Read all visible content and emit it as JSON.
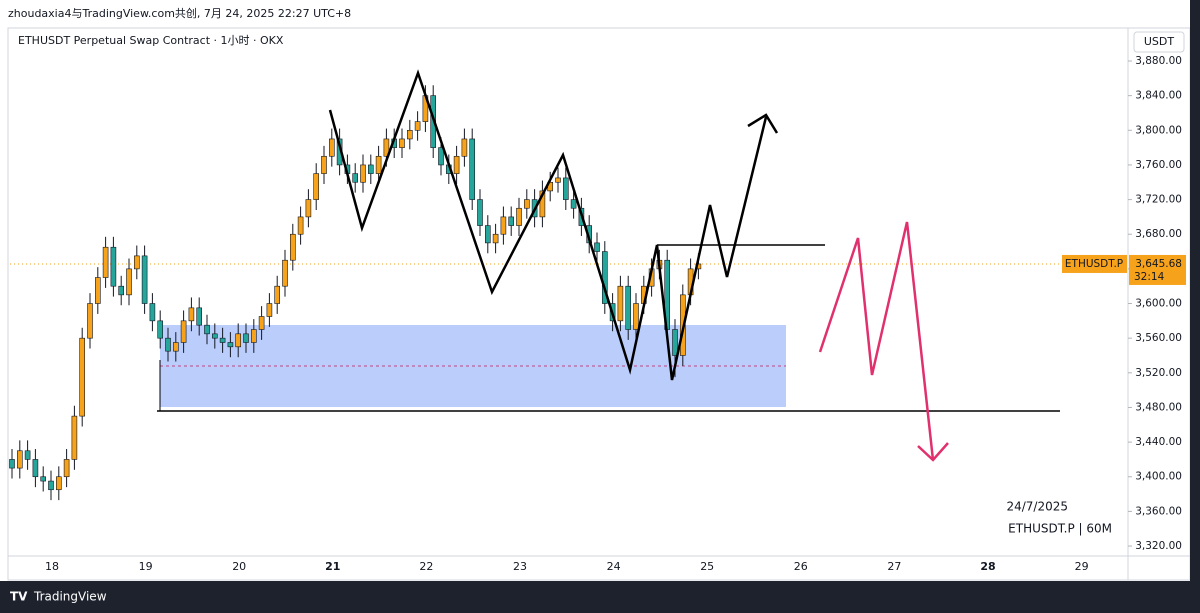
{
  "header": {
    "title": "zhoudaxia4与TradingView.com共创, 7月 24, 2025 22:27 UTC+8"
  },
  "footer": {
    "brand": "TradingView"
  },
  "chart_data": {
    "type": "candlestick",
    "title": "ETHUSDT Perpetual Swap Contract · 1小时 · OKX",
    "currency": "USDT",
    "annotation_date": "24/7/2025",
    "annotation_symbol": "ETHUSDT.P | 60M",
    "price_tag_name": "ETHUSDT.P",
    "countdown": "32:14",
    "last_price": {
      "value": 3645.68,
      "label": "3,645.68"
    },
    "up_color": "#f7a21b",
    "down_color": "#26a69a",
    "xticks": [
      18,
      19,
      20,
      21,
      22,
      23,
      24,
      25,
      26,
      27,
      28,
      29
    ],
    "ylim": [
      3308.5,
      3918.1
    ],
    "yticks": [
      {
        "value": 3320,
        "label": "3,320.00"
      },
      {
        "value": 3360,
        "label": "3,360.00"
      },
      {
        "value": 3400,
        "label": "3,400.00"
      },
      {
        "value": 3440,
        "label": "3,440.00"
      },
      {
        "value": 3480,
        "label": "3,480.00"
      },
      {
        "value": 3520,
        "label": "3,520.00"
      },
      {
        "value": 3560,
        "label": "3,560.00"
      },
      {
        "value": 3600,
        "label": "3,600.00"
      },
      {
        "value": 3640,
        "label": "3,640.00"
      },
      {
        "value": 3680,
        "label": "3,680.00"
      },
      {
        "value": 3720,
        "label": "3,720.00"
      },
      {
        "value": 3760,
        "label": "3,760.00"
      },
      {
        "value": 3800,
        "label": "3,800.00"
      },
      {
        "value": 3840,
        "label": "3,840.00"
      },
      {
        "value": 3880,
        "label": "3,880.00"
      }
    ],
    "open": [
      3420,
      3410,
      3430,
      3420,
      3400,
      3395,
      3385,
      3400,
      3420,
      3470,
      3560,
      3600,
      3630,
      3665,
      3620,
      3610,
      3640,
      3655,
      3600,
      3580,
      3560,
      3545,
      3555,
      3580,
      3595,
      3575,
      3565,
      3560,
      3555,
      3550,
      3565,
      3555,
      3570,
      3585,
      3600,
      3620,
      3650,
      3680,
      3700,
      3720,
      3750,
      3770,
      3790,
      3760,
      3750,
      3740,
      3760,
      3750,
      3770,
      3790,
      3780,
      3790,
      3800,
      3810,
      3840,
      3780,
      3760,
      3750,
      3770,
      3790,
      3720,
      3690,
      3670,
      3680,
      3700,
      3690,
      3710,
      3720,
      3700,
      3730,
      3740,
      3745,
      3720,
      3710,
      3690,
      3670,
      3660,
      3600,
      3580,
      3620,
      3570,
      3600,
      3620,
      3640,
      3650,
      3570,
      3540,
      3610,
      3640
    ],
    "high": [
      3432,
      3442,
      3442,
      3432,
      3412,
      3407,
      3412,
      3432,
      3482,
      3572,
      3612,
      3642,
      3677,
      3677,
      3632,
      3652,
      3667,
      3667,
      3612,
      3592,
      3572,
      3567,
      3592,
      3607,
      3607,
      3587,
      3577,
      3572,
      3567,
      3577,
      3577,
      3582,
      3597,
      3612,
      3632,
      3662,
      3692,
      3712,
      3732,
      3762,
      3782,
      3802,
      3802,
      3772,
      3762,
      3772,
      3772,
      3782,
      3802,
      3802,
      3802,
      3812,
      3822,
      3852,
      3852,
      3792,
      3772,
      3782,
      3802,
      3802,
      3732,
      3702,
      3692,
      3712,
      3712,
      3722,
      3732,
      3732,
      3742,
      3752,
      3757,
      3757,
      3732,
      3722,
      3702,
      3682,
      3672,
      3612,
      3632,
      3632,
      3612,
      3632,
      3652,
      3662,
      3662,
      3582,
      3622,
      3652,
      3658
    ],
    "low": [
      3398,
      3398,
      3408,
      3388,
      3383,
      3373,
      3373,
      3388,
      3408,
      3458,
      3548,
      3588,
      3618,
      3608,
      3598,
      3598,
      3628,
      3588,
      3568,
      3548,
      3533,
      3533,
      3543,
      3568,
      3563,
      3553,
      3548,
      3543,
      3538,
      3538,
      3543,
      3543,
      3558,
      3573,
      3588,
      3608,
      3638,
      3668,
      3688,
      3708,
      3738,
      3758,
      3748,
      3738,
      3728,
      3728,
      3738,
      3738,
      3758,
      3768,
      3768,
      3778,
      3788,
      3798,
      3768,
      3748,
      3738,
      3738,
      3758,
      3708,
      3678,
      3658,
      3658,
      3668,
      3678,
      3678,
      3698,
      3688,
      3688,
      3718,
      3728,
      3708,
      3698,
      3678,
      3658,
      3648,
      3588,
      3568,
      3568,
      3558,
      3558,
      3588,
      3608,
      3628,
      3558,
      3515,
      3528,
      3598,
      3628
    ],
    "close": [
      3410,
      3430,
      3420,
      3400,
      3395,
      3385,
      3400,
      3420,
      3470,
      3560,
      3600,
      3630,
      3665,
      3620,
      3610,
      3640,
      3655,
      3600,
      3580,
      3560,
      3545,
      3555,
      3580,
      3595,
      3575,
      3565,
      3560,
      3555,
      3550,
      3565,
      3555,
      3570,
      3585,
      3600,
      3620,
      3650,
      3680,
      3700,
      3720,
      3750,
      3770,
      3790,
      3760,
      3750,
      3740,
      3760,
      3750,
      3770,
      3790,
      3780,
      3790,
      3800,
      3810,
      3840,
      3780,
      3760,
      3750,
      3770,
      3790,
      3720,
      3690,
      3670,
      3680,
      3700,
      3690,
      3710,
      3720,
      3700,
      3730,
      3740,
      3745,
      3720,
      3710,
      3690,
      3670,
      3660,
      3600,
      3580,
      3620,
      3570,
      3600,
      3620,
      3640,
      3650,
      3570,
      3540,
      3610,
      3640,
      3645.68
    ]
  }
}
